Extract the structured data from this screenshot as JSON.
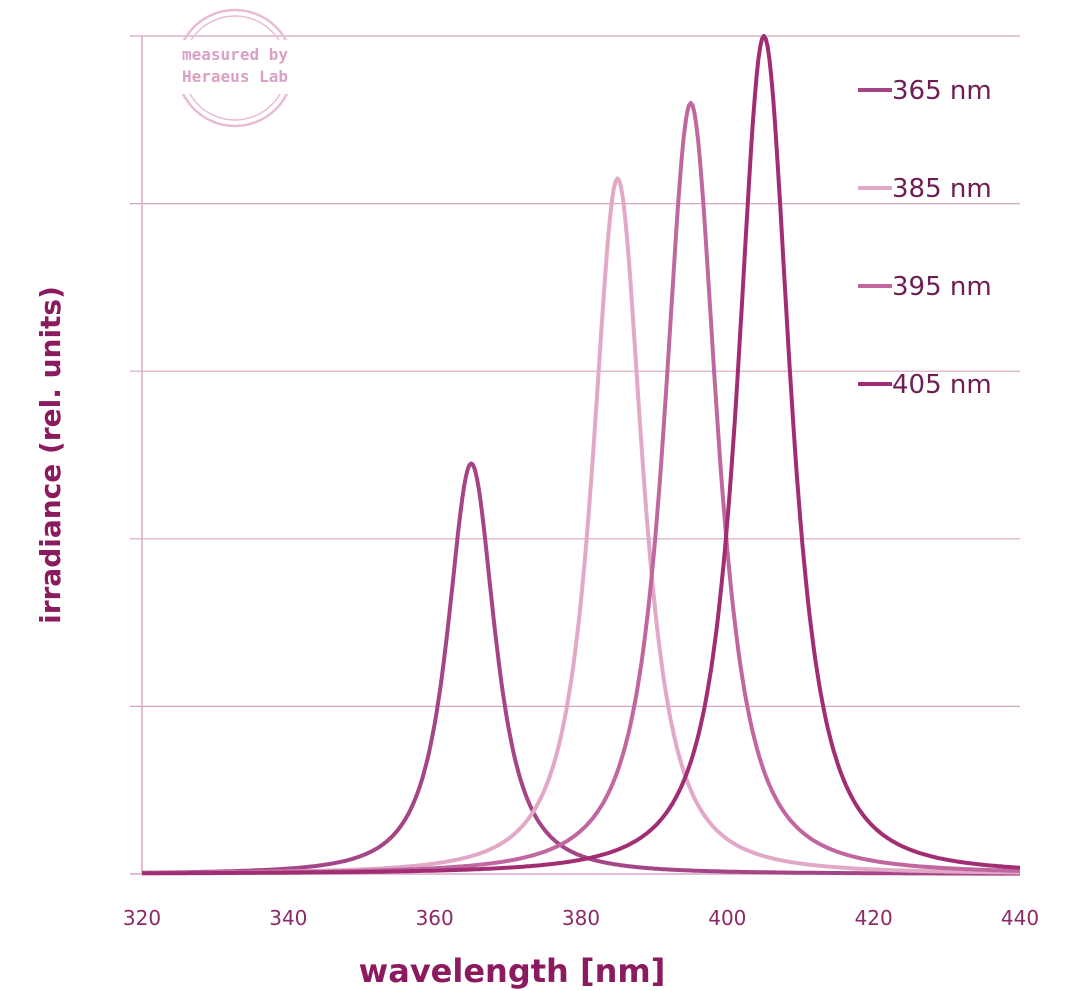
{
  "chart_data": {
    "type": "line",
    "title": "",
    "xlabel": "wavelength [nm]",
    "ylabel": "irradiance (rel. units)",
    "xlim": [
      320,
      440
    ],
    "ylim": [
      0,
      1
    ],
    "x_ticks": [
      "320",
      "340",
      "360",
      "380",
      "400",
      "420",
      "440"
    ],
    "y_gridlines": 5,
    "grid": true,
    "legend_position": "right",
    "watermark": {
      "line1": "measured by",
      "line2": "Heraeus Lab"
    },
    "series": [
      {
        "name": "365 nm",
        "color": "#a44585",
        "peak_x": 365,
        "peak_y": 0.49,
        "fwhm": 9
      },
      {
        "name": "385 nm",
        "color": "#e2a8c8",
        "peak_x": 385,
        "peak_y": 0.83,
        "fwhm": 9.5
      },
      {
        "name": "395 nm",
        "color": "#c0679f",
        "peak_x": 395,
        "peak_y": 0.92,
        "fwhm": 10
      },
      {
        "name": "405 nm",
        "color": "#a12e72",
        "peak_x": 405,
        "peak_y": 1.0,
        "fwhm": 10
      }
    ]
  }
}
